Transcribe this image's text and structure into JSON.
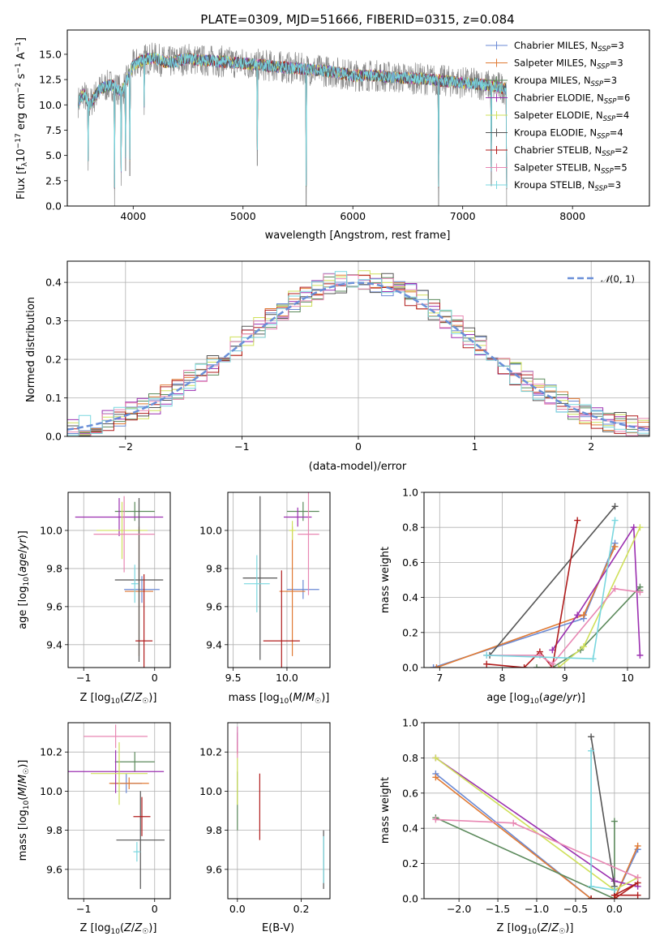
{
  "colors": {
    "s0": "#6a89d4",
    "s1": "#e07a34",
    "s2": "#5c8a5c",
    "s3": "#9b2fb0",
    "s4": "#cfe05a",
    "s5": "#555555",
    "s6": "#b01c1c",
    "s7": "#e887b3",
    "s8": "#7ad7df",
    "data": "#8a8a8a"
  },
  "chart_data": [
    {
      "id": "spectrum",
      "type": "line",
      "title": "PLATE=0309, MJD=51666, FIBERID=0315, z=0.084",
      "xlabel": "wavelength [Angstrom, rest frame]",
      "ylabel": "Flux [fλ10⁻¹⁷ erg cm⁻² s⁻¹ A⁻¹]",
      "xlim": [
        3400,
        8700
      ],
      "ylim": [
        0,
        17.4
      ],
      "xticks": [
        "4000",
        "5000",
        "6000",
        "7000",
        "8000"
      ],
      "yticks": [
        "0.0",
        "2.5",
        "5.0",
        "7.5",
        "10.0",
        "12.5",
        "15.0"
      ],
      "legend_position": "upper right",
      "legend": [
        "Chabrier MILES, N_SSP=3",
        "Salpeter MILES, N_SSP=3",
        "Kroupa MILES, N_SSP=3",
        "Chabrier ELODIE, N_SSP=6",
        "Salpeter ELODIE, N_SSP=4",
        "Kroupa ELODIE, N_SSP=4",
        "Chabrier STELIB, N_SSP=2",
        "Salpeter STELIB, N_SSP=5",
        "Kroupa STELIB, N_SSP=3"
      ],
      "continuum": {
        "x": [
          3500,
          3550,
          3600,
          3700,
          3800,
          3900,
          4000,
          4100,
          4200,
          4300,
          4400,
          4500,
          4600,
          4800,
          5000,
          5200,
          5400,
          5600,
          5800,
          6000,
          6200,
          6400,
          6600,
          6800,
          7000,
          7200,
          7400
        ],
        "y": [
          10.3,
          11.1,
          10.0,
          11.6,
          12.0,
          11.3,
          13.9,
          14.5,
          14.6,
          14.2,
          14.3,
          14.6,
          14.4,
          14.3,
          14.1,
          13.9,
          13.7,
          13.5,
          13.3,
          12.9,
          12.9,
          12.7,
          12.6,
          12.4,
          12.2,
          12.0,
          11.6
        ]
      },
      "dips": [
        [
          3590,
          3.5
        ],
        [
          3830,
          0
        ],
        [
          3890,
          2.0
        ],
        [
          3930,
          3.5
        ],
        [
          3970,
          3.0
        ],
        [
          4100,
          9.0
        ],
        [
          5130,
          4.0
        ],
        [
          5575,
          0
        ],
        [
          6780,
          0
        ],
        [
          7260,
          2.0
        ],
        [
          7400,
          0
        ]
      ],
      "legend_N": [
        3,
        3,
        3,
        6,
        4,
        4,
        2,
        5,
        3
      ]
    },
    {
      "id": "residuals",
      "type": "step",
      "xlabel": "(data-model)/error",
      "ylabel": "Normed distribution",
      "xlim": [
        -2.5,
        2.5
      ],
      "ylim": [
        0,
        0.455
      ],
      "xticks": [
        "−2",
        "−1",
        "0",
        "1",
        "2"
      ],
      "yticks": [
        "0.0",
        "0.1",
        "0.2",
        "0.3",
        "0.4"
      ],
      "legend": [
        "N(0,1)"
      ],
      "legend_position": "upper right",
      "gaussian": {
        "mean": 0,
        "std": 1
      }
    },
    {
      "id": "age_vs_Z",
      "type": "errorbar",
      "xlabel": "Z [log10(Z/Z☉)]",
      "ylabel": "age  [log10(age/yr)]",
      "xlim": [
        -1.22,
        0.22
      ],
      "ylim": [
        9.28,
        10.2
      ],
      "xticks": [
        "−1",
        "0"
      ],
      "xtick_vals": [
        -1,
        0
      ],
      "yticks": [
        "9.4",
        "9.6",
        "9.8",
        "10.0"
      ],
      "ytick_vals": [
        9.4,
        9.6,
        9.8,
        10.0
      ],
      "points": [
        {
          "s": 0,
          "x": -0.18,
          "xe": 0.25,
          "y": 9.69,
          "ye": 0.07
        },
        {
          "s": 1,
          "x": -0.22,
          "xe": 0.2,
          "y": 9.68,
          "ye": 0.34
        },
        {
          "s": 2,
          "x": -0.28,
          "xe": 0.28,
          "y": 10.1,
          "ye": 0.05
        },
        {
          "s": 3,
          "x": -0.5,
          "xe": 0.62,
          "y": 10.07,
          "ye": 0.1
        },
        {
          "s": 4,
          "x": -0.46,
          "xe": 0.36,
          "y": 10.0,
          "ye": 0.15
        },
        {
          "s": 5,
          "x": -0.22,
          "xe": 0.34,
          "y": 9.74,
          "ye": 0.43
        },
        {
          "s": 6,
          "x": -0.15,
          "xe": 0.12,
          "y": 9.42,
          "ye": 0.35
        },
        {
          "s": 7,
          "x": -0.43,
          "xe": 0.43,
          "y": 9.98,
          "ye": 0.2
        },
        {
          "s": 8,
          "x": -0.28,
          "xe": 0.05,
          "y": 9.72,
          "ye": 0.1
        }
      ]
    },
    {
      "id": "age_vs_mass",
      "type": "errorbar",
      "xlabel": "mass [log10(M/M☉)]",
      "ylabel": "",
      "xlim": [
        9.45,
        10.4
      ],
      "ylim": [
        9.28,
        10.2
      ],
      "xticks": [
        "9.5",
        "10.0"
      ],
      "xtick_vals": [
        9.5,
        10.0
      ],
      "yticks": [
        "9.4",
        "9.6",
        "9.8",
        "10.0"
      ],
      "ytick_vals": [
        9.4,
        9.6,
        9.8,
        10.0
      ],
      "points": [
        {
          "s": 0,
          "x": 10.15,
          "xe": 0.15,
          "y": 9.69,
          "ye": 0.05
        },
        {
          "s": 1,
          "x": 10.05,
          "xe": 0.12,
          "y": 9.68,
          "ye": 0.34
        },
        {
          "s": 2,
          "x": 10.15,
          "xe": 0.15,
          "y": 10.1,
          "ye": 0.05
        },
        {
          "s": 3,
          "x": 10.1,
          "xe": 0.13,
          "y": 10.07,
          "ye": 0.05
        },
        {
          "s": 4,
          "x": 10.05,
          "xe": 0.03,
          "y": 10.0,
          "ye": 0.05
        },
        {
          "s": 5,
          "x": 9.75,
          "xe": 0.16,
          "y": 9.75,
          "ye": 0.43
        },
        {
          "s": 6,
          "x": 9.95,
          "xe": 0.17,
          "y": 9.42,
          "ye": 0.37
        },
        {
          "s": 7,
          "x": 10.2,
          "xe": 0.1,
          "y": 9.98,
          "ye": 0.32
        },
        {
          "s": 8,
          "x": 9.72,
          "xe": 0.12,
          "y": 9.72,
          "ye": 0.15
        }
      ]
    },
    {
      "id": "massweight_vs_age",
      "type": "line",
      "xlabel": "age  [log10(age/yr)]",
      "ylabel": "mass weight",
      "xlim": [
        6.75,
        10.35
      ],
      "ylim": [
        0,
        1.0
      ],
      "xticks": [
        "7",
        "8",
        "9",
        "10"
      ],
      "xtick_vals": [
        7,
        8,
        9,
        10
      ],
      "yticks": [
        "0.0",
        "0.2",
        "0.4",
        "0.6",
        "0.8",
        "1.0"
      ],
      "ytick_vals": [
        0,
        0.2,
        0.4,
        0.6,
        0.8,
        1.0
      ],
      "series": [
        {
          "s": 0,
          "x": [
            6.9,
            9.3,
            9.8
          ],
          "y": [
            0.0,
            0.28,
            0.71
          ]
        },
        {
          "s": 1,
          "x": [
            6.95,
            9.3,
            9.8
          ],
          "y": [
            0.0,
            0.3,
            0.69
          ]
        },
        {
          "s": 2,
          "x": [
            8.55,
            8.8,
            9.25,
            10.2,
            10.2
          ],
          "y": [
            0.0,
            0.0,
            0.1,
            0.46,
            0.44
          ]
        },
        {
          "s": 3,
          "x": [
            8.8,
            9.2,
            10.1,
            10.2
          ],
          "y": [
            0.1,
            0.3,
            0.8,
            0.07
          ]
        },
        {
          "s": 4,
          "x": [
            8.9,
            9.3,
            10.2
          ],
          "y": [
            0.0,
            0.12,
            0.8
          ]
        },
        {
          "s": 5,
          "x": [
            7.8,
            9.8
          ],
          "y": [
            0.07,
            0.92
          ]
        },
        {
          "s": 6,
          "x": [
            7.75,
            8.35,
            8.6,
            8.8,
            9.2
          ],
          "y": [
            0.02,
            0.0,
            0.09,
            0.0,
            0.84
          ]
        },
        {
          "s": 7,
          "x": [
            7.75,
            8.6,
            8.8,
            9.8,
            10.2
          ],
          "y": [
            0.07,
            0.07,
            0.02,
            0.45,
            0.43
          ]
        },
        {
          "s": 8,
          "x": [
            7.75,
            9.45,
            9.8
          ],
          "y": [
            0.07,
            0.05,
            0.84
          ]
        }
      ]
    },
    {
      "id": "mass_vs_Z",
      "type": "errorbar",
      "xlabel": "Z [log10(Z/Z☉)]",
      "ylabel": "mass [log10(M/M☉)]",
      "xlim": [
        -1.22,
        0.22
      ],
      "ylim": [
        9.45,
        10.35
      ],
      "xticks": [
        "−1",
        "0"
      ],
      "xtick_vals": [
        -1,
        0
      ],
      "yticks": [
        "9.6",
        "9.8",
        "10.0",
        "10.2"
      ],
      "ytick_vals": [
        9.6,
        9.8,
        10.0,
        10.2
      ],
      "points": [
        {
          "s": 0,
          "x": -0.4,
          "xe": 0.22,
          "y": 10.04,
          "ye": 0.05
        },
        {
          "s": 1,
          "x": -0.36,
          "xe": 0.28,
          "y": 10.04,
          "ye": 0.03
        },
        {
          "s": 2,
          "x": -0.28,
          "xe": 0.28,
          "y": 10.15,
          "ye": 0.05
        },
        {
          "s": 3,
          "x": -0.55,
          "xe": 0.68,
          "y": 10.1,
          "ye": 0.11
        },
        {
          "s": 4,
          "x": -0.5,
          "xe": 0.4,
          "y": 10.09,
          "ye": 0.16
        },
        {
          "s": 5,
          "x": -0.2,
          "xe": 0.34,
          "y": 9.75,
          "ye": 0.25
        },
        {
          "s": 6,
          "x": -0.18,
          "xe": 0.12,
          "y": 9.87,
          "ye": 0.1
        },
        {
          "s": 7,
          "x": -0.55,
          "xe": 0.45,
          "y": 10.28,
          "ye": 0.06
        },
        {
          "s": 8,
          "x": -0.25,
          "xe": 0.05,
          "y": 9.69,
          "ye": 0.05
        }
      ]
    },
    {
      "id": "mass_vs_EBV",
      "type": "errorbar",
      "xlabel": "E(B-V)",
      "ylabel": "",
      "xlim": [
        -0.03,
        0.29
      ],
      "ylim": [
        9.45,
        10.35
      ],
      "xticks": [
        "0.0",
        "0.2"
      ],
      "xtick_vals": [
        0.0,
        0.2
      ],
      "yticks": [
        "9.6",
        "9.8",
        "10.0",
        "10.2"
      ],
      "ytick_vals": [
        9.6,
        9.8,
        10.0,
        10.2
      ],
      "points": [
        {
          "s": 0,
          "x": 0.0,
          "xe": 0,
          "y": 10.28,
          "ye": 0.05
        },
        {
          "s": 1,
          "x": 0.0,
          "xe": 0,
          "y": 10.22,
          "ye": 0.03
        },
        {
          "s": 2,
          "x": 0.0,
          "xe": 0,
          "y": 9.95,
          "ye": 0.15
        },
        {
          "s": 3,
          "x": 0.0,
          "xe": 0,
          "y": 10.25,
          "ye": 0.05
        },
        {
          "s": 4,
          "x": 0.0,
          "xe": 0,
          "y": 10.05,
          "ye": 0.12
        },
        {
          "s": 5,
          "x": 0.27,
          "xe": 0,
          "y": 9.65,
          "ye": 0.15
        },
        {
          "s": 6,
          "x": 0.07,
          "xe": 0,
          "y": 9.92,
          "ye": 0.17
        },
        {
          "s": 7,
          "x": 0.0,
          "xe": 0,
          "y": 10.25,
          "ye": 0.08
        },
        {
          "s": 8,
          "x": 0.27,
          "xe": 0,
          "y": 9.65,
          "ye": 0.12
        }
      ]
    },
    {
      "id": "massweight_vs_Z",
      "type": "line",
      "xlabel": "Z [log10(Z/Z☉)]",
      "ylabel": "mass weight",
      "xlim": [
        -2.45,
        0.45
      ],
      "ylim": [
        0,
        1.0
      ],
      "xticks": [
        "−2.0",
        "−1.5",
        "−1.0",
        "−0.5",
        "0.0"
      ],
      "xtick_vals": [
        -2.0,
        -1.5,
        -1.0,
        -0.5,
        0.0
      ],
      "yticks": [
        "0.0",
        "0.2",
        "0.4",
        "0.6",
        "0.8",
        "1.0"
      ],
      "ytick_vals": [
        0,
        0.2,
        0.4,
        0.6,
        0.8,
        1.0
      ],
      "series": [
        {
          "s": 0,
          "x": [
            -2.3,
            -0.3,
            0.0,
            0.3
          ],
          "y": [
            0.71,
            0.0,
            0.0,
            0.28
          ]
        },
        {
          "s": 1,
          "x": [
            -2.3,
            -0.3,
            0.0,
            0.3
          ],
          "y": [
            0.69,
            0.0,
            0.0,
            0.3
          ]
        },
        {
          "s": 2,
          "x": [
            -2.3,
            0.0,
            0.0,
            0.0
          ],
          "y": [
            0.46,
            0.0,
            0.1,
            0.44
          ]
        },
        {
          "s": 3,
          "x": [
            -2.3,
            0.0,
            0.3
          ],
          "y": [
            0.8,
            0.1,
            0.07
          ]
        },
        {
          "s": 4,
          "x": [
            -2.3,
            0.0,
            0.3
          ],
          "y": [
            0.8,
            0.05,
            0.12
          ]
        },
        {
          "s": 5,
          "x": [
            -0.3,
            0.0,
            0.0
          ],
          "y": [
            0.92,
            0.07,
            0.02
          ]
        },
        {
          "s": 6,
          "x": [
            -0.3,
            0.0,
            0.3,
            0.0,
            0.3
          ],
          "y": [
            0.0,
            0.0,
            0.09,
            0.02,
            0.02
          ]
        },
        {
          "s": 7,
          "x": [
            -2.3,
            -1.3,
            0.3
          ],
          "y": [
            0.45,
            0.43,
            0.12
          ]
        },
        {
          "s": 8,
          "x": [
            -0.3,
            -0.3,
            0.0
          ],
          "y": [
            0.84,
            0.07,
            0.05
          ]
        }
      ]
    }
  ]
}
